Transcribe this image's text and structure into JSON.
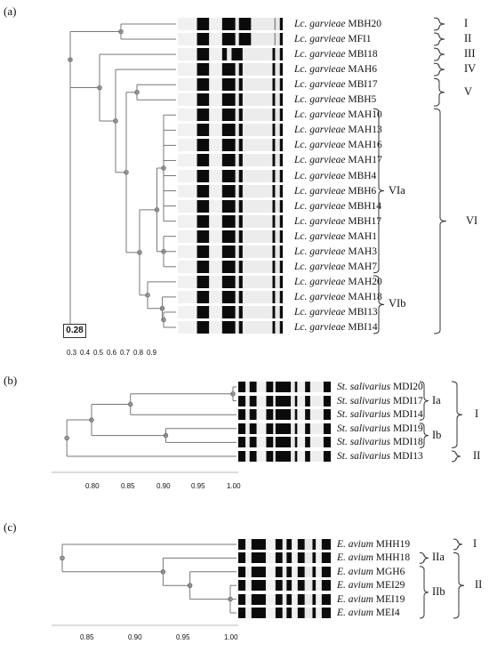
{
  "panels": [
    {
      "letter": "(a)",
      "scale_value": "0.28",
      "axis_ticks": [
        "0.3",
        "0.4",
        "0.5",
        "0.6",
        "0.7",
        "0.8",
        "0.9"
      ],
      "strains": [
        {
          "genus": "Lc. garvieae",
          "id": "MBH20"
        },
        {
          "genus": "Lc. garvieae",
          "id": "MFI1"
        },
        {
          "genus": "Lc. garvieae",
          "id": "MBI18"
        },
        {
          "genus": "Lc. garvieae",
          "id": "MAH6"
        },
        {
          "genus": "Lc. garvieae",
          "id": "MBI17"
        },
        {
          "genus": "Lc. garvieae",
          "id": "MBH5"
        },
        {
          "genus": "Lc. garvieae",
          "id": "MAH10"
        },
        {
          "genus": "Lc. garvieae",
          "id": "MAH13"
        },
        {
          "genus": "Lc. garvieae",
          "id": "MAH16"
        },
        {
          "genus": "Lc. garvieae",
          "id": "MAH17"
        },
        {
          "genus": "Lc. garvieae",
          "id": "MBH4"
        },
        {
          "genus": "Lc. garvieae",
          "id": "MBH6"
        },
        {
          "genus": "Lc. garvieae",
          "id": "MBH14"
        },
        {
          "genus": "Lc. garvieae",
          "id": "MBH17"
        },
        {
          "genus": "Lc. garvieae",
          "id": "MAH1"
        },
        {
          "genus": "Lc. garvieae",
          "id": "MAH3"
        },
        {
          "genus": "Lc. garvieae",
          "id": "MAH7"
        },
        {
          "genus": "Lc. garvieae",
          "id": "MAH20"
        },
        {
          "genus": "Lc. garvieae",
          "id": "MAH18"
        },
        {
          "genus": "Lc. garvieae",
          "id": "MBI13"
        },
        {
          "genus": "Lc. garvieae",
          "id": "MBI14"
        }
      ],
      "groups": [
        "I",
        "II",
        "III",
        "IV",
        "V",
        "VI"
      ],
      "subgroups": [
        "VIa",
        "VIb"
      ]
    },
    {
      "letter": "(b)",
      "axis_ticks": [
        "0.80",
        "0.85",
        "0.90",
        "0.95",
        "1.00"
      ],
      "strains": [
        {
          "genus": "St. salivarius",
          "id": "MDI20"
        },
        {
          "genus": "St. salivarius",
          "id": "MDI17"
        },
        {
          "genus": "St. salivarius",
          "id": "MDI14"
        },
        {
          "genus": "St. salivarius",
          "id": "MDI19"
        },
        {
          "genus": "St. salivarius",
          "id": "MDI18"
        },
        {
          "genus": "St. salivarius",
          "id": "MDI13"
        }
      ],
      "groups": [
        "I",
        "II"
      ],
      "subgroups": [
        "Ia",
        "Ib"
      ]
    },
    {
      "letter": "(c)",
      "axis_ticks": [
        "0.85",
        "0.90",
        "0.95",
        "1.00"
      ],
      "strains": [
        {
          "genus": "E. avium",
          "id": "MHH19"
        },
        {
          "genus": "E. avium",
          "id": "MHH18"
        },
        {
          "genus": "E. avium",
          "id": "MGH6"
        },
        {
          "genus": "E. avium",
          "id": "MEI29"
        },
        {
          "genus": "E. avium",
          "id": "MEI19"
        },
        {
          "genus": "E. avium",
          "id": "MEI4"
        }
      ],
      "groups": [
        "I",
        "II"
      ],
      "subgroups": [
        "IIa",
        "IIb"
      ]
    }
  ]
}
